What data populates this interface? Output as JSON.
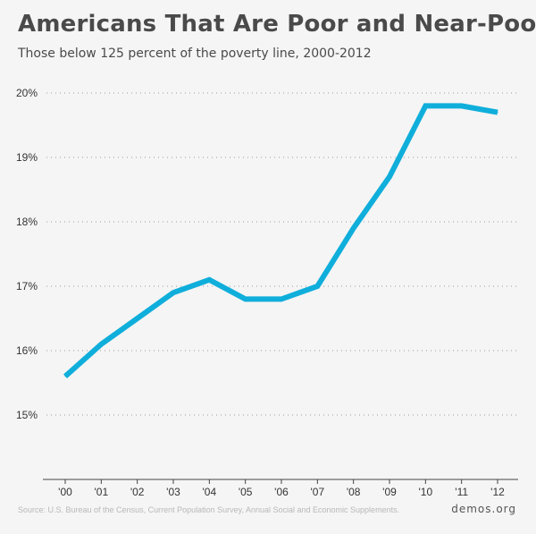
{
  "chart_data": {
    "type": "line",
    "title": "Americans That Are Poor and Near-Poor",
    "subtitle": "Those below 125 percent of the poverty line, 2000-2012",
    "categories": [
      "'00",
      "'01",
      "'02",
      "'03",
      "'04",
      "'05",
      "'06",
      "'07",
      "'08",
      "'09",
      "'10",
      "'11",
      "'12"
    ],
    "series": [
      {
        "values": [
          15.6,
          16.1,
          16.5,
          16.9,
          17.1,
          16.8,
          16.8,
          17.0,
          17.9,
          18.7,
          19.8,
          19.8,
          19.7
        ],
        "color": "#0faedb"
      }
    ],
    "y_ticks": [
      15,
      16,
      17,
      18,
      19,
      20
    ],
    "y_tick_labels": [
      "15%",
      "16%",
      "17%",
      "18%",
      "19%",
      "20%"
    ],
    "ylim": [
      14,
      20
    ],
    "grid": true,
    "xlabel": "",
    "ylabel": ""
  },
  "footer": {
    "source": "Source: U.S. Bureau of the Census, Current Population Survey, Annual Social and Economic Supplements.",
    "brand": "demos.org"
  },
  "colors": {
    "background": "#f5f5f5",
    "line": "#0faedb",
    "text": "#4a4a4a"
  }
}
